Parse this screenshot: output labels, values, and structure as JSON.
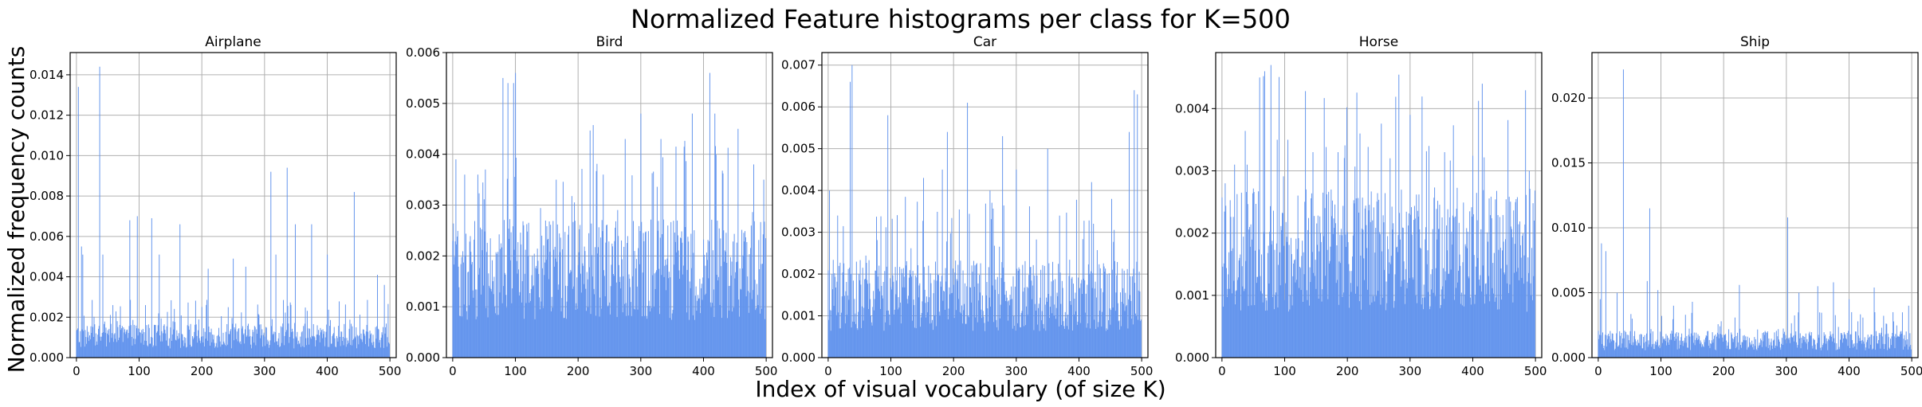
{
  "figure": {
    "title": "Normalized Feature histograms per class for K=500",
    "xlabel": "Index of visual vocabulary (of size K)",
    "ylabel": "Normalized frequency counts"
  },
  "colors": {
    "bars": "#6495ed",
    "grid": "#b0b0b0",
    "axes": "#000000"
  },
  "chart_data": [
    {
      "type": "bar",
      "title": "Airplane",
      "xlim": [
        -10,
        510
      ],
      "xticks": [
        0,
        100,
        200,
        300,
        400,
        500
      ],
      "ylim": [
        0,
        0.0151
      ],
      "yticks": [
        "0.000",
        "0.002",
        "0.004",
        "0.006",
        "0.008",
        "0.010",
        "0.012",
        "0.014"
      ],
      "grid": true,
      "n_bins": 500,
      "base": 0.0013,
      "peaks": [
        [
          3,
          0.0134
        ],
        [
          8,
          0.0055
        ],
        [
          10,
          0.0051
        ],
        [
          37,
          0.0144
        ],
        [
          42,
          0.0051
        ],
        [
          58,
          0.0026
        ],
        [
          85,
          0.0068
        ],
        [
          97,
          0.007
        ],
        [
          110,
          0.0026
        ],
        [
          120,
          0.0069
        ],
        [
          132,
          0.0051
        ],
        [
          165,
          0.0066
        ],
        [
          210,
          0.0044
        ],
        [
          250,
          0.0049
        ],
        [
          270,
          0.0045
        ],
        [
          310,
          0.0092
        ],
        [
          318,
          0.0051
        ],
        [
          336,
          0.0094
        ],
        [
          349,
          0.0066
        ],
        [
          375,
          0.0066
        ],
        [
          400,
          0.0051
        ],
        [
          443,
          0.0082
        ],
        [
          480,
          0.0041
        ],
        [
          491,
          0.0036
        ]
      ]
    },
    {
      "type": "bar",
      "title": "Bird",
      "xlim": [
        -10,
        510
      ],
      "xticks": [
        0,
        100,
        200,
        300,
        400,
        500
      ],
      "ylim": [
        0,
        0.006
      ],
      "yticks": [
        "0.000",
        "0.001",
        "0.002",
        "0.003",
        "0.004",
        "0.005",
        "0.006"
      ],
      "grid": true,
      "n_bins": 500,
      "base": 0.0021,
      "peaks": [
        [
          5,
          0.0039
        ],
        [
          40,
          0.0036
        ],
        [
          52,
          0.0037
        ],
        [
          80,
          0.0055
        ],
        [
          88,
          0.0054
        ],
        [
          97,
          0.0054
        ],
        [
          100,
          0.0056
        ],
        [
          165,
          0.0035
        ],
        [
          240,
          0.0036
        ],
        [
          275,
          0.0043
        ],
        [
          300,
          0.0048
        ],
        [
          332,
          0.0043
        ],
        [
          382,
          0.0048
        ],
        [
          410,
          0.0056
        ],
        [
          418,
          0.0048
        ],
        [
          455,
          0.0045
        ],
        [
          480,
          0.0038
        ],
        [
          496,
          0.0035
        ]
      ]
    },
    {
      "type": "bar",
      "title": "Car",
      "xlim": [
        -10,
        510
      ],
      "xticks": [
        0,
        100,
        200,
        300,
        400,
        500
      ],
      "ylim": [
        0,
        0.0073
      ],
      "yticks": [
        "0.000",
        "0.001",
        "0.002",
        "0.003",
        "0.004",
        "0.005",
        "0.006",
        "0.007"
      ],
      "grid": true,
      "n_bins": 500,
      "base": 0.0018,
      "peaks": [
        [
          2,
          0.004
        ],
        [
          15,
          0.0034
        ],
        [
          35,
          0.0066
        ],
        [
          38,
          0.007
        ],
        [
          95,
          0.0058
        ],
        [
          152,
          0.0043
        ],
        [
          182,
          0.0045
        ],
        [
          190,
          0.0054
        ],
        [
          222,
          0.0061
        ],
        [
          258,
          0.004
        ],
        [
          278,
          0.0053
        ],
        [
          300,
          0.0045
        ],
        [
          350,
          0.005
        ],
        [
          420,
          0.0042
        ],
        [
          480,
          0.0054
        ],
        [
          488,
          0.0064
        ],
        [
          493,
          0.0063
        ]
      ]
    },
    {
      "type": "bar",
      "title": "Horse",
      "xlim": [
        -10,
        510
      ],
      "xticks": [
        0,
        100,
        200,
        300,
        400,
        500
      ],
      "ylim": [
        0,
        0.0049
      ],
      "yticks": [
        "0.000",
        "0.001",
        "0.002",
        "0.003",
        "0.004"
      ],
      "grid": true,
      "n_bins": 500,
      "base": 0.0021,
      "peaks": [
        [
          5,
          0.0028
        ],
        [
          20,
          0.0031
        ],
        [
          40,
          0.0031
        ],
        [
          60,
          0.0045
        ],
        [
          68,
          0.0046
        ],
        [
          78,
          0.0047
        ],
        [
          88,
          0.0035
        ],
        [
          105,
          0.0035
        ],
        [
          145,
          0.0033
        ],
        [
          185,
          0.0033
        ],
        [
          220,
          0.0036
        ],
        [
          300,
          0.0039
        ],
        [
          330,
          0.0034
        ],
        [
          355,
          0.0033
        ],
        [
          415,
          0.0044
        ],
        [
          490,
          0.003
        ]
      ]
    },
    {
      "type": "bar",
      "title": "Ship",
      "xlim": [
        -10,
        510
      ],
      "xticks": [
        0,
        100,
        200,
        300,
        400,
        500
      ],
      "ylim": [
        0,
        0.0235
      ],
      "yticks": [
        "0.000",
        "0.005",
        "0.010",
        "0.015",
        "0.020"
      ],
      "grid": true,
      "n_bins": 500,
      "base": 0.0016,
      "peaks": [
        [
          3,
          0.0045
        ],
        [
          5,
          0.0088
        ],
        [
          12,
          0.0082
        ],
        [
          30,
          0.005
        ],
        [
          40,
          0.0222
        ],
        [
          78,
          0.0059
        ],
        [
          82,
          0.0115
        ],
        [
          95,
          0.0052
        ],
        [
          120,
          0.004
        ],
        [
          150,
          0.0043
        ],
        [
          225,
          0.0056
        ],
        [
          302,
          0.0108
        ],
        [
          320,
          0.005
        ],
        [
          350,
          0.0055
        ],
        [
          375,
          0.0058
        ],
        [
          400,
          0.0045
        ],
        [
          440,
          0.0054
        ],
        [
          470,
          0.0035
        ],
        [
          495,
          0.004
        ]
      ]
    }
  ]
}
